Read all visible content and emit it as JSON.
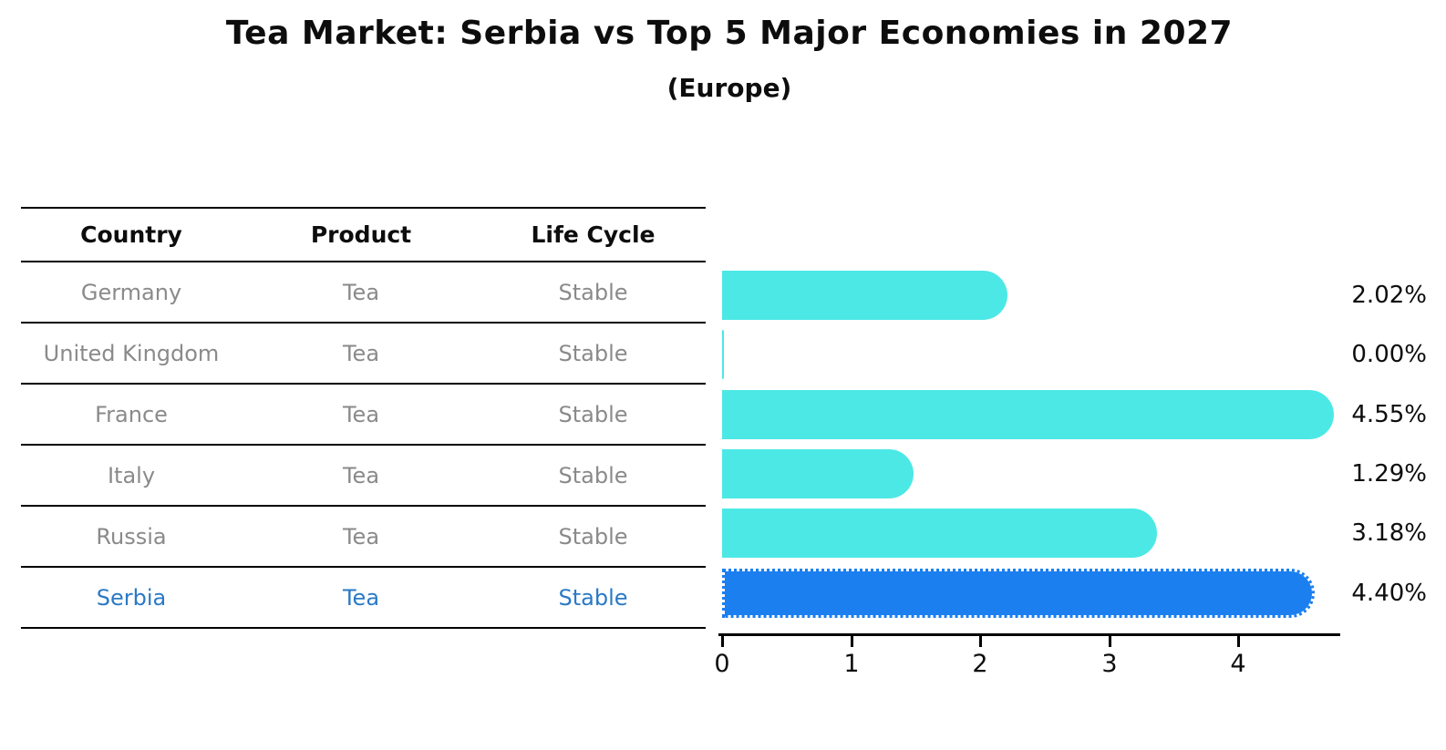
{
  "title": "Tea Market: Serbia vs Top 5 Major Economies in 2027",
  "subtitle": "(Europe)",
  "table": {
    "headers": {
      "country": "Country",
      "product": "Product",
      "life_cycle": "Life Cycle"
    },
    "rows": [
      {
        "country": "Germany",
        "product": "Tea",
        "life_cycle": "Stable",
        "highlight": false
      },
      {
        "country": "United Kingdom",
        "product": "Tea",
        "life_cycle": "Stable",
        "highlight": false
      },
      {
        "country": "France",
        "product": "Tea",
        "life_cycle": "Stable",
        "highlight": false
      },
      {
        "country": "Italy",
        "product": "Tea",
        "life_cycle": "Stable",
        "highlight": false
      },
      {
        "country": "Russia",
        "product": "Tea",
        "life_cycle": "Stable",
        "highlight": false
      },
      {
        "country": "Serbia",
        "product": "Tea",
        "life_cycle": "Stable",
        "highlight": true
      }
    ]
  },
  "chart_data": {
    "type": "bar",
    "orientation": "horizontal",
    "title": "Tea Market: Serbia vs Top 5 Major Economies in 2027",
    "subtitle": "(Europe)",
    "categories": [
      "Germany",
      "United Kingdom",
      "France",
      "Italy",
      "Russia",
      "Serbia"
    ],
    "values": [
      2.02,
      0.0,
      4.55,
      1.29,
      3.18,
      4.4
    ],
    "value_labels": [
      "2.02%",
      "0.00%",
      "4.55%",
      "1.29%",
      "3.18%",
      "4.40%"
    ],
    "xlim": [
      0,
      4.79
    ],
    "x_ticks": [
      0,
      1,
      2,
      3,
      4
    ],
    "grid": false,
    "legend": "none",
    "bar_color": "#4CE8E5",
    "highlight_color": "#1B7FF0",
    "highlight_index": 5,
    "highlight_text_color": "#2A79C5",
    "row_text_color": "#8a8a8a"
  }
}
